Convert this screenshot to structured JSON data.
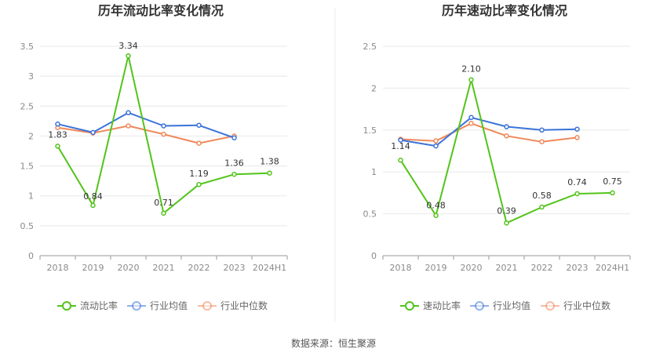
{
  "source": "数据来源：恒生聚源",
  "colors": {
    "main": "#52c41a",
    "avg": "#3b73d9",
    "median": "#f0885a"
  },
  "chart_data": [
    {
      "type": "line",
      "title": "历年流动比率变化情况",
      "categories": [
        "2018",
        "2019",
        "2020",
        "2021",
        "2022",
        "2023",
        "2024H1"
      ],
      "ylim": [
        0,
        3.5
      ],
      "yticks": [
        "0",
        "0.5",
        "1",
        "1.5",
        "2",
        "2.5",
        "3",
        "3.5"
      ],
      "legend_position": "bottom",
      "grid": true,
      "series": [
        {
          "name": "流动比率",
          "values": [
            1.83,
            0.84,
            3.34,
            0.71,
            1.19,
            1.36,
            1.38
          ],
          "labels": [
            "1.83",
            "0.84",
            "3.34",
            "0.71",
            "1.19",
            "1.36",
            "1.38"
          ]
        },
        {
          "name": "行业均值",
          "values": [
            2.2,
            2.06,
            2.39,
            2.17,
            2.18,
            1.97,
            null
          ]
        },
        {
          "name": "行业中位数",
          "values": [
            2.14,
            2.05,
            2.17,
            2.03,
            1.88,
            2.0,
            null
          ]
        }
      ]
    },
    {
      "type": "line",
      "title": "历年速动比率变化情况",
      "categories": [
        "2018",
        "2019",
        "2020",
        "2021",
        "2022",
        "2023",
        "2024H1"
      ],
      "ylim": [
        0,
        2.5
      ],
      "yticks": [
        "0",
        "0.5",
        "1",
        "1.5",
        "2",
        "2.5"
      ],
      "legend_position": "bottom",
      "grid": true,
      "series": [
        {
          "name": "速动比率",
          "values": [
            1.14,
            0.48,
            2.1,
            0.39,
            0.58,
            0.74,
            0.75
          ],
          "labels": [
            "1.14",
            "0.48",
            "2.10",
            "0.39",
            "0.58",
            "0.74",
            "0.75"
          ]
        },
        {
          "name": "行业均值",
          "values": [
            1.38,
            1.31,
            1.65,
            1.54,
            1.5,
            1.51,
            null
          ]
        },
        {
          "name": "行业中位数",
          "values": [
            1.39,
            1.37,
            1.58,
            1.43,
            1.36,
            1.41,
            null
          ]
        }
      ]
    }
  ]
}
